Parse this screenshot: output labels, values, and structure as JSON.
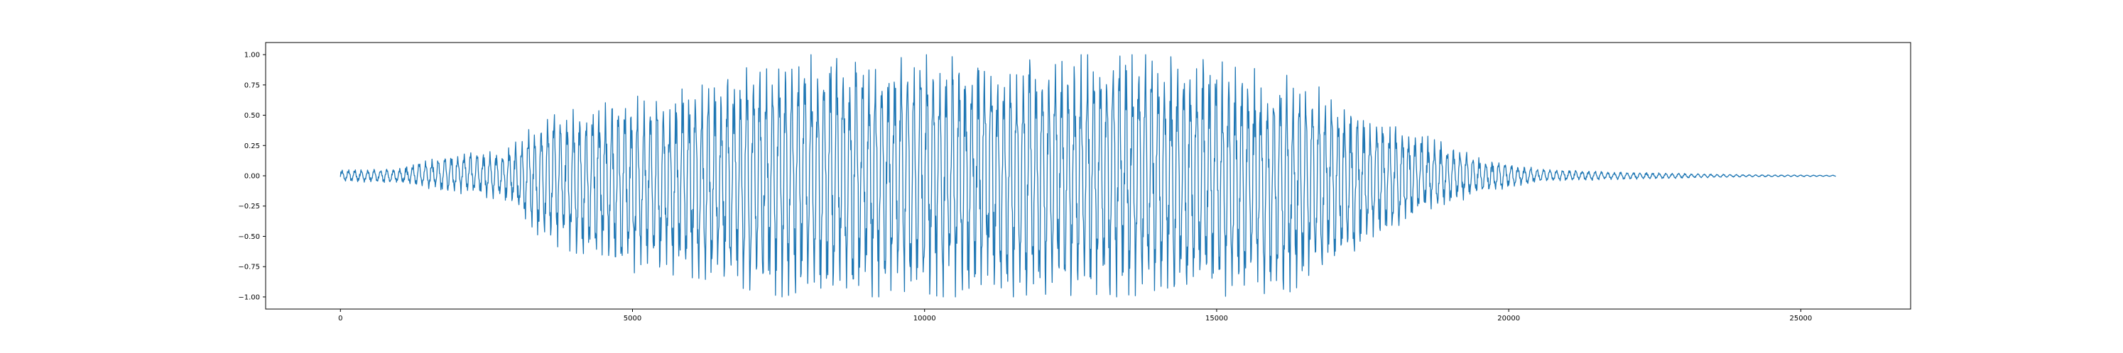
{
  "chart_data": {
    "type": "line",
    "title": "",
    "xlabel": "",
    "ylabel": "",
    "xlim": [
      -1280,
      26880
    ],
    "ylim": [
      -1.1,
      1.1
    ],
    "grid": false,
    "legend": "none",
    "line_color": "#1f77b4",
    "x_ticks": [
      0,
      5000,
      10000,
      15000,
      20000,
      25000
    ],
    "x_tick_labels": [
      "0",
      "5000",
      "10000",
      "15000",
      "20000",
      "25000"
    ],
    "y_ticks": [
      1.0,
      0.75,
      0.5,
      0.25,
      0.0,
      -0.25,
      -0.5,
      -0.75,
      -1.0
    ],
    "y_tick_labels": [
      "1.00",
      "0.75",
      "0.50",
      "0.25",
      "0.00",
      "−0.25",
      "−0.50",
      "−0.75",
      "−1.00"
    ],
    "series": [
      {
        "x_range": [
          0,
          25600
        ],
        "envelope_x": [
          0,
          1000,
          2000,
          2800,
          3500,
          5000,
          6200,
          7500,
          8500,
          10000,
          11500,
          13000,
          13800,
          15000,
          16500,
          17500,
          18500,
          19500,
          20500,
          22000,
          24000,
          25600
        ],
        "envelope_upper": [
          0.05,
          0.06,
          0.2,
          0.2,
          0.5,
          0.65,
          0.75,
          1.0,
          1.0,
          1.0,
          1.0,
          1.0,
          1.0,
          0.95,
          0.8,
          0.55,
          0.35,
          0.15,
          0.06,
          0.03,
          0.01,
          0.005
        ],
        "envelope_lower": [
          -0.05,
          -0.06,
          -0.15,
          -0.2,
          -0.55,
          -0.8,
          -0.85,
          -1.0,
          -1.0,
          -1.0,
          -1.0,
          -1.0,
          -1.0,
          -1.0,
          -0.95,
          -0.6,
          -0.35,
          -0.15,
          -0.05,
          -0.03,
          -0.01,
          -0.005
        ]
      }
    ]
  }
}
